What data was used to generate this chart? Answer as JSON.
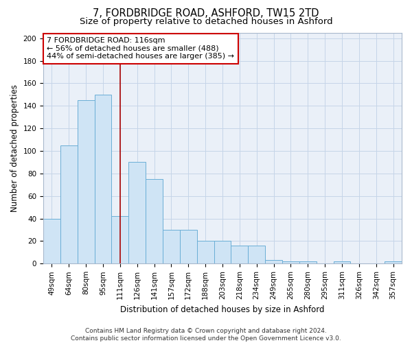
{
  "title_line1": "7, FORDBRIDGE ROAD, ASHFORD, TW15 2TD",
  "title_line2": "Size of property relative to detached houses in Ashford",
  "xlabel": "Distribution of detached houses by size in Ashford",
  "ylabel": "Number of detached properties",
  "categories": [
    "49sqm",
    "64sqm",
    "80sqm",
    "95sqm",
    "111sqm",
    "126sqm",
    "141sqm",
    "157sqm",
    "172sqm",
    "188sqm",
    "203sqm",
    "218sqm",
    "234sqm",
    "249sqm",
    "265sqm",
    "280sqm",
    "295sqm",
    "311sqm",
    "326sqm",
    "342sqm",
    "357sqm"
  ],
  "values": [
    40,
    105,
    145,
    150,
    42,
    90,
    75,
    30,
    30,
    20,
    20,
    16,
    16,
    3,
    2,
    2,
    0,
    2,
    0,
    0,
    2
  ],
  "bar_color": "#cfe4f5",
  "bar_edge_color": "#6aaed6",
  "vline_x": 4.0,
  "vline_color": "#aa0000",
  "annotation_text": "7 FORDBRIDGE ROAD: 116sqm\n← 56% of detached houses are smaller (488)\n44% of semi-detached houses are larger (385) →",
  "annotation_box_color": "#ffffff",
  "annotation_box_edge": "#cc0000",
  "ylim": [
    0,
    205
  ],
  "yticks": [
    0,
    20,
    40,
    60,
    80,
    100,
    120,
    140,
    160,
    180,
    200
  ],
  "grid_color": "#c5d5e8",
  "bg_color": "#eaf0f8",
  "footer_text": "Contains HM Land Registry data © Crown copyright and database right 2024.\nContains public sector information licensed under the Open Government Licence v3.0.",
  "title_fontsize": 10.5,
  "subtitle_fontsize": 9.5,
  "axis_label_fontsize": 8.5,
  "tick_fontsize": 7.5,
  "annotation_fontsize": 8,
  "footer_fontsize": 6.5
}
